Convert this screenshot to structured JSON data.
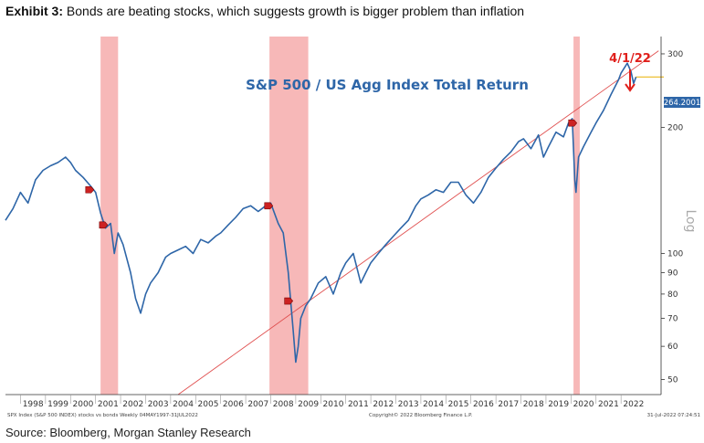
{
  "exhibit": {
    "label": "Exhibit 3:",
    "text": " Bonds are beating stocks, which suggests growth is bigger problem than inflation"
  },
  "source": "Source: Bloomberg, Morgan Stanley Research",
  "footer": {
    "left": "SPX Index (S&P 500 INDEX) stocks vs bonds  Weekly 04MAY1997-31JUL2022",
    "center": "Copyright© 2022 Bloomberg Finance L.P.",
    "right": "31-Jul-2022 07:24:51"
  },
  "chart_data": {
    "type": "line",
    "title": "S&P 500 / US Agg Index Total Return",
    "y_scale": "log",
    "y_scale_label": "Log",
    "ylim": [
      46,
      330
    ],
    "xlim": [
      1997.4,
      2023.6
    ],
    "y_ticks": [
      50,
      60,
      70,
      80,
      90,
      100,
      200,
      300
    ],
    "x_ticks": [
      "1998",
      "1999",
      "2000",
      "2001",
      "2002",
      "2003",
      "2004",
      "2005",
      "2006",
      "2007",
      "2008",
      "2009",
      "2010",
      "2011",
      "2012",
      "2013",
      "2014",
      "2015",
      "2016",
      "2017",
      "2018",
      "2019",
      "2020",
      "2021",
      "2022"
    ],
    "last_value": "264.2001",
    "last_value_level": 264.2,
    "annotation": {
      "text": "4/1/22",
      "x": 2022.25,
      "y": 285
    },
    "recessions": [
      [
        2001.2,
        2001.9
      ],
      [
        2007.95,
        2009.5
      ],
      [
        2020.1,
        2020.35
      ]
    ],
    "trendline": {
      "x": [
        2004.3,
        2023.5
      ],
      "y": [
        46,
        305
      ]
    },
    "markers": [
      {
        "x": 2000.75,
        "y": 142
      },
      {
        "x": 2001.3,
        "y": 117
      },
      {
        "x": 2007.9,
        "y": 130
      },
      {
        "x": 2008.7,
        "y": 77
      },
      {
        "x": 2020.05,
        "y": 205
      }
    ],
    "colors": {
      "line": "#2e66a8",
      "recession": "#f7b8b8",
      "trend": "#e05050",
      "marker": "#cc2222",
      "annotation": "#e0201c"
    },
    "series": [
      {
        "x": [
          1997.4,
          1997.7,
          1998.0,
          1998.3,
          1998.6,
          1998.9,
          1999.2,
          1999.5,
          1999.8,
          2000.0,
          2000.2,
          2000.5,
          2000.8,
          2001.0,
          2001.2,
          2001.4,
          2001.6,
          2001.75,
          2001.9,
          2002.1,
          2002.4,
          2002.6,
          2002.8,
          2003.0,
          2003.2,
          2003.5,
          2003.8,
          2004.0,
          2004.3,
          2004.6,
          2004.9,
          2005.2,
          2005.5,
          2005.8,
          2006.0,
          2006.3,
          2006.6,
          2006.9,
          2007.2,
          2007.5,
          2007.8,
          2008.0,
          2008.3,
          2008.5,
          2008.7,
          2008.9,
          2009.0,
          2009.1,
          2009.2,
          2009.4,
          2009.6,
          2009.9,
          2010.2,
          2010.5,
          2010.8,
          2011.0,
          2011.3,
          2011.6,
          2011.8,
          2012.0,
          2012.3,
          2012.6,
          2012.9,
          2013.2,
          2013.5,
          2013.8,
          2014.0,
          2014.3,
          2014.6,
          2014.9,
          2015.2,
          2015.5,
          2015.8,
          2016.1,
          2016.4,
          2016.7,
          2017.0,
          2017.3,
          2017.6,
          2017.9,
          2018.1,
          2018.4,
          2018.7,
          2018.9,
          2019.1,
          2019.4,
          2019.7,
          2019.9,
          2020.05,
          2020.15,
          2020.2,
          2020.3,
          2020.5,
          2020.8,
          2021.0,
          2021.3,
          2021.6,
          2021.9,
          2022.0,
          2022.25,
          2022.4,
          2022.5,
          2022.6
        ],
        "y": [
          120,
          128,
          140,
          132,
          150,
          158,
          162,
          165,
          170,
          165,
          158,
          152,
          145,
          140,
          125,
          115,
          118,
          100,
          112,
          105,
          90,
          78,
          72,
          80,
          85,
          90,
          98,
          100,
          102,
          104,
          100,
          108,
          106,
          110,
          112,
          117,
          122,
          128,
          130,
          126,
          130,
          132,
          118,
          112,
          90,
          65,
          55,
          60,
          70,
          75,
          78,
          85,
          88,
          80,
          90,
          95,
          100,
          85,
          90,
          95,
          100,
          105,
          110,
          115,
          120,
          130,
          135,
          138,
          142,
          140,
          148,
          148,
          138,
          132,
          140,
          152,
          160,
          168,
          175,
          185,
          188,
          178,
          192,
          170,
          180,
          195,
          190,
          205,
          210,
          150,
          140,
          170,
          180,
          195,
          205,
          220,
          240,
          260,
          270,
          285,
          272,
          255,
          264.2
        ]
      }
    ]
  }
}
